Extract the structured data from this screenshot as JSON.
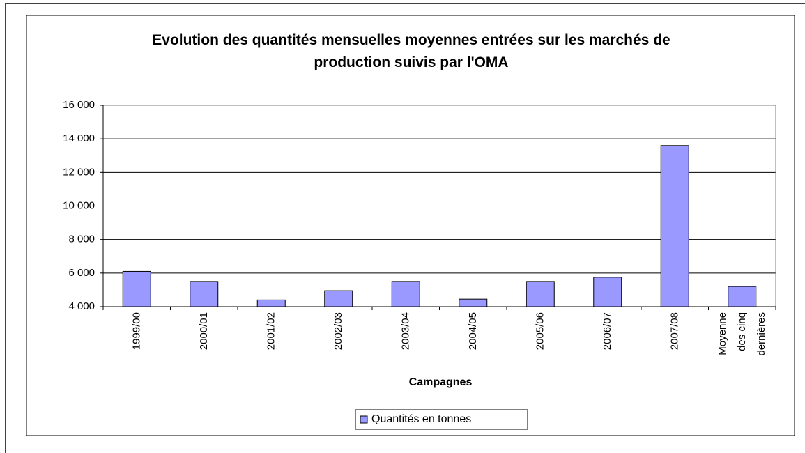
{
  "chart_data": {
    "type": "bar",
    "title": "Evolution des quantités mensuelles moyennes entrées sur les marchés de production suivis par l'OMA",
    "x_label": "Campagnes",
    "categories": [
      "1999/00",
      "2000/01",
      "2001/02",
      "2002/03",
      "2003/04",
      "2004/05",
      "2005/06",
      "2006/07",
      "2007/08",
      "Moyenne des cinq dernières"
    ],
    "series": [
      {
        "name": "Quantités en tonnes",
        "color": "#9999ff",
        "values": [
          6100,
          5500,
          4400,
          4950,
          5500,
          4450,
          5500,
          5750,
          13600,
          5200
        ]
      }
    ],
    "ylim": [
      4000,
      16000
    ],
    "yticks": [
      {
        "value": 4000,
        "label": "4 000"
      },
      {
        "value": 6000,
        "label": "6 000"
      },
      {
        "value": 8000,
        "label": "8 000"
      },
      {
        "value": 10000,
        "label": "10 000"
      },
      {
        "value": 12000,
        "label": "12 000"
      },
      {
        "value": 14000,
        "label": "14 000"
      },
      {
        "value": 16000,
        "label": "16 000"
      }
    ],
    "grid": true,
    "legend": "bottom"
  }
}
